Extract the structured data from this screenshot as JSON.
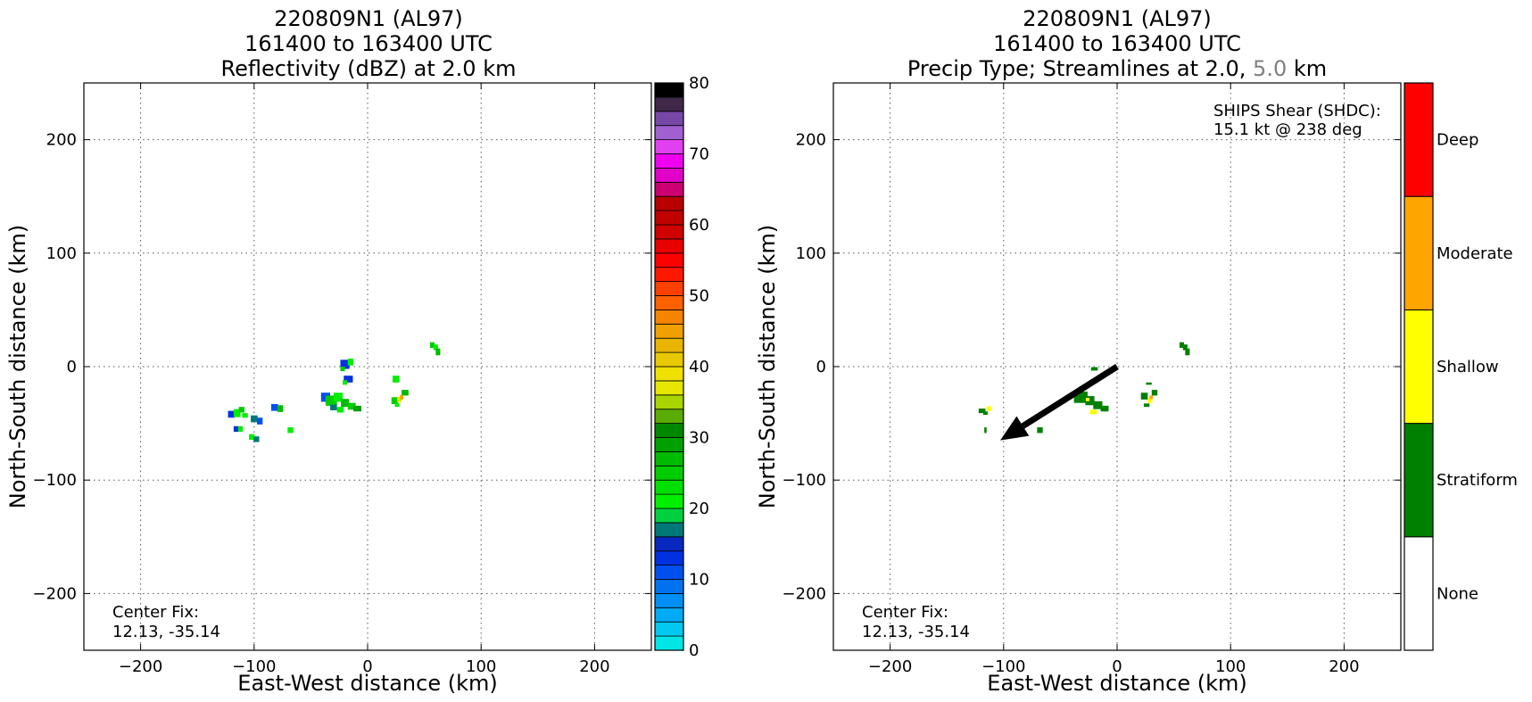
{
  "chart_data": [
    {
      "type": "heatmap",
      "title_lines": [
        "220809N1 (AL97)",
        "161400 to 163400 UTC",
        "Reflectivity (dBZ) at 2.0 km"
      ],
      "xlabel": "East-West distance (km)",
      "ylabel": "North-South distance (km)",
      "xlim": [
        -250,
        250
      ],
      "ylim": [
        -250,
        250
      ],
      "xticks": [
        -200,
        -100,
        0,
        100,
        200
      ],
      "yticks": [
        -200,
        -100,
        0,
        100,
        200
      ],
      "xtick_labels": [
        "−200",
        "−100",
        "0",
        "100",
        "200"
      ],
      "ytick_labels": [
        "−200",
        "−100",
        "0",
        "100",
        "200"
      ],
      "grid": true,
      "annotation_lines": [
        "Center Fix:",
        "12.13, -35.14"
      ],
      "colorbar": {
        "min": 0,
        "max": 80,
        "step": 2.5,
        "tick_values": [
          0,
          10,
          20,
          30,
          40,
          50,
          60,
          70,
          80
        ],
        "tick_labels": [
          "0",
          "10",
          "20",
          "30",
          "40",
          "50",
          "60",
          "70",
          "80"
        ],
        "colors": [
          "#00e5e5",
          "#00c8f0",
          "#00aaf5",
          "#0090f5",
          "#0072f0",
          "#0050f0",
          "#0030e0",
          "#0828c0",
          "#007878",
          "#00d040",
          "#00ee00",
          "#00e000",
          "#00cc00",
          "#00bb00",
          "#00a000",
          "#008800",
          "#5aac00",
          "#a8d400",
          "#e6e600",
          "#f0e000",
          "#e8c800",
          "#e8b400",
          "#f0a000",
          "#f58400",
          "#ff6000",
          "#ff4000",
          "#ff1800",
          "#ff0000",
          "#e80000",
          "#d00000",
          "#c00000",
          "#b80000",
          "#cc0070",
          "#e000c8",
          "#f000f0",
          "#e040f0",
          "#a060d0",
          "#7848a8",
          "#402848",
          "#000000"
        ]
      },
      "cells": [
        [
          57,
          19,
          4,
          5,
          "#00cc00"
        ],
        [
          60,
          17,
          4,
          5,
          "#00ee00"
        ],
        [
          62,
          13,
          4,
          6,
          "#00bb00"
        ],
        [
          -20,
          2,
          8,
          8,
          "#0030e0"
        ],
        [
          -15,
          4,
          5,
          6,
          "#00ee00"
        ],
        [
          -22,
          -2,
          4,
          4,
          "#00cc00"
        ],
        [
          -17,
          -11,
          8,
          6,
          "#0030e0"
        ],
        [
          -20,
          -14,
          4,
          4,
          "#00ee00"
        ],
        [
          25,
          -11,
          6,
          6,
          "#00ee00"
        ],
        [
          33,
          -23,
          6,
          5,
          "#00bb00"
        ],
        [
          -37,
          -27,
          8,
          8,
          "#0050f0"
        ],
        [
          -32,
          -30,
          10,
          9,
          "#00cc00"
        ],
        [
          -26,
          -27,
          8,
          8,
          "#00ee00"
        ],
        [
          -20,
          -32,
          7,
          7,
          "#00bb00"
        ],
        [
          -14,
          -35,
          7,
          6,
          "#00cc00"
        ],
        [
          -9,
          -37,
          7,
          5,
          "#00a000"
        ],
        [
          -30,
          -36,
          6,
          5,
          "#007878"
        ],
        [
          -24,
          -38,
          6,
          5,
          "#00ee00"
        ],
        [
          24,
          -30,
          6,
          6,
          "#00cc00"
        ],
        [
          28,
          -29,
          4,
          5,
          "#e6e600"
        ],
        [
          30,
          -27,
          3,
          4,
          "#f0a000"
        ],
        [
          26,
          -34,
          4,
          3,
          "#00ee00"
        ],
        [
          -120,
          -42,
          6,
          6,
          "#0030e0"
        ],
        [
          -115,
          -41,
          6,
          7,
          "#00ee00"
        ],
        [
          -111,
          -38,
          5,
          5,
          "#00cc00"
        ],
        [
          -108,
          -43,
          5,
          4,
          "#00ee00"
        ],
        [
          -100,
          -46,
          6,
          6,
          "#007878"
        ],
        [
          -95,
          -48,
          5,
          6,
          "#0050f0"
        ],
        [
          -82,
          -36,
          6,
          6,
          "#0050f0"
        ],
        [
          -77,
          -37,
          5,
          6,
          "#00bb00"
        ],
        [
          -116,
          -55,
          4,
          5,
          "#0030e0"
        ],
        [
          -112,
          -55,
          4,
          5,
          "#00ee00"
        ],
        [
          -102,
          -62,
          5,
          5,
          "#00ee00"
        ],
        [
          -98,
          -64,
          5,
          5,
          "#007878"
        ],
        [
          -68,
          -56,
          5,
          5,
          "#00ee00"
        ]
      ]
    },
    {
      "type": "heatmap",
      "title_lines": [
        "220809N1 (AL97)",
        "161400 to 163400 UTC"
      ],
      "title_line3_parts": [
        "Precip Type; Streamlines at 2.0, ",
        "5.0",
        " km"
      ],
      "title_line3_colors": [
        "#000000",
        "#808080",
        "#000000"
      ],
      "xlabel": "East-West distance (km)",
      "ylabel": "North-South distance (km)",
      "xlim": [
        -250,
        250
      ],
      "ylim": [
        -250,
        250
      ],
      "xticks": [
        -200,
        -100,
        0,
        100,
        200
      ],
      "yticks": [
        -200,
        -100,
        0,
        100,
        200
      ],
      "xtick_labels": [
        "−200",
        "−100",
        "0",
        "100",
        "200"
      ],
      "ytick_labels": [
        "−200",
        "−100",
        "0",
        "100",
        "200"
      ],
      "grid": true,
      "annotation_lines": [
        "Center Fix:",
        "12.13, -35.14"
      ],
      "shear_lines": [
        "SHIPS Shear (SHDC):",
        "15.1 kt @ 238 deg"
      ],
      "shear_arrow": {
        "from": [
          0,
          0
        ],
        "to": [
          -103,
          -65
        ]
      },
      "colorbar": {
        "categories": [
          "None",
          "Stratiform",
          "Shallow",
          "Moderate",
          "Deep"
        ],
        "colors": [
          "#ffffff",
          "#008000",
          "#ffff00",
          "#ffa500",
          "#ff0000"
        ]
      },
      "cells": [
        [
          57,
          19,
          4,
          5,
          "#008000"
        ],
        [
          60,
          17,
          4,
          5,
          "#008000"
        ],
        [
          62,
          13,
          4,
          6,
          "#008000"
        ],
        [
          -20,
          -2,
          6,
          3,
          "#008000"
        ],
        [
          -32,
          -27,
          12,
          10,
          "#008000"
        ],
        [
          -24,
          -30,
          8,
          8,
          "#008000"
        ],
        [
          -17,
          -34,
          8,
          7,
          "#008000"
        ],
        [
          -11,
          -37,
          7,
          5,
          "#008000"
        ],
        [
          -21,
          -40,
          6,
          4,
          "#ffff00"
        ],
        [
          -26,
          -29,
          3,
          3,
          "#ffff00"
        ],
        [
          24,
          -26,
          6,
          6,
          "#008000"
        ],
        [
          33,
          -23,
          5,
          5,
          "#008000"
        ],
        [
          29,
          -30,
          4,
          4,
          "#ffff00"
        ],
        [
          30,
          -27,
          3,
          3,
          "#ffa500"
        ],
        [
          26,
          -34,
          5,
          3,
          "#008000"
        ],
        [
          28,
          -15,
          5,
          2,
          "#008000"
        ],
        [
          -119,
          -39,
          6,
          4,
          "#008000"
        ],
        [
          -113,
          -37,
          4,
          4,
          "#ffff00"
        ],
        [
          -116,
          -41,
          4,
          3,
          "#008000"
        ],
        [
          -116,
          -56,
          2,
          5,
          "#008000"
        ],
        [
          -68,
          -56,
          5,
          5,
          "#008000"
        ]
      ]
    }
  ]
}
